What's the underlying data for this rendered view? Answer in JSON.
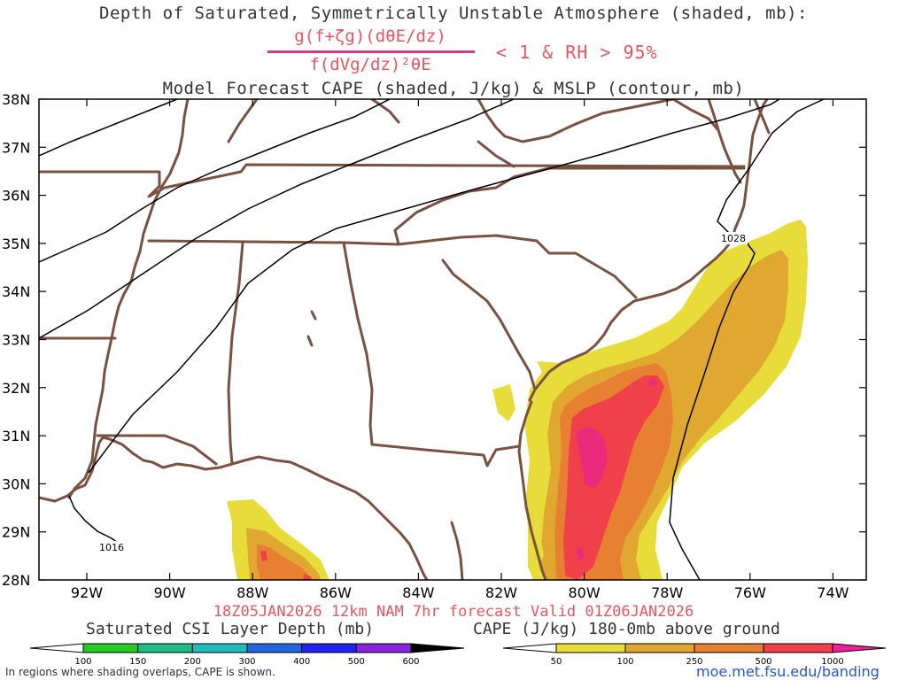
{
  "title": {
    "line1": "Depth of Saturated, Symmetrically Unstable Atmosphere (shaded, mb):",
    "numerator": "g(f+ζg)(dθE/dz)",
    "denominator": "f(dVg/dz)²θE",
    "criterion": "< 1 & RH > 95%",
    "line3": "Model Forecast CAPE (shaded, J/kg) & MSLP (contour, mb)"
  },
  "axes": {
    "lat_labels": [
      "38N",
      "37N",
      "36N",
      "35N",
      "34N",
      "33N",
      "32N",
      "31N",
      "30N",
      "29N",
      "28N"
    ],
    "lon_labels": [
      "92W",
      "90W",
      "88W",
      "86W",
      "84W",
      "82W",
      "80W",
      "78W",
      "76W",
      "74W"
    ]
  },
  "isobars": {
    "labels": [
      "1016",
      "1028"
    ]
  },
  "footer": {
    "forecast": "18Z05JAN2026 12km NAM 7hr forecast Valid 01Z06JAN2026",
    "note": "In regions where shading overlaps, CAPE is shown.",
    "site": "moe.met.fsu.edu/banding"
  },
  "csi_bar": {
    "label": "Saturated CSI Layer Depth (mb)",
    "ticks": [
      "100",
      "150",
      "200",
      "300",
      "400",
      "500",
      "600"
    ],
    "colors": [
      "#ffffff",
      "#22cc22",
      "#22bb88",
      "#22bbbb",
      "#2266dd",
      "#2222ee",
      "#8822dd",
      "#000000"
    ]
  },
  "cape_bar": {
    "label": "CAPE (J/kg) 180-0mb above ground",
    "ticks": [
      "50",
      "100",
      "250",
      "500",
      "1000"
    ],
    "colors": [
      "#ffffff",
      "#e8dc3a",
      "#e0a830",
      "#e88032",
      "#f0404a",
      "#f0209a"
    ]
  },
  "colors": {
    "state_lines": "#7a5040",
    "isobar": "#000000",
    "title_red": "#e8555f",
    "link_blue": "#2a55c8"
  }
}
